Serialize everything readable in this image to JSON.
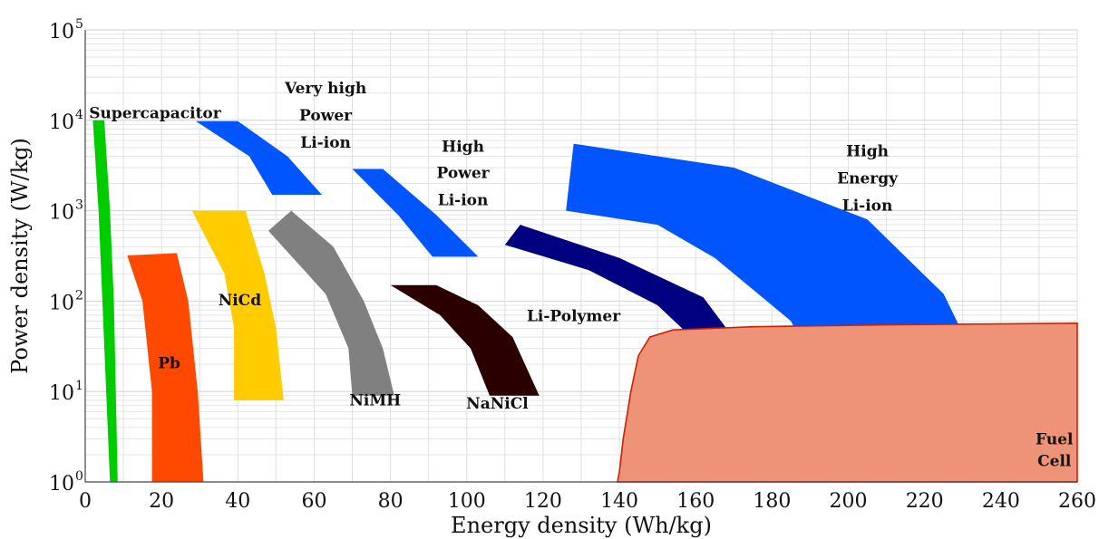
{
  "chart_data": {
    "type": "area",
    "title": "",
    "xlabel": "Energy density (Wh/kg)",
    "ylabel": "Power density (W/kg)",
    "x_scale": "linear",
    "y_scale": "log",
    "xlim": [
      0,
      260
    ],
    "ylim": [
      1,
      100000
    ],
    "x_ticks": [
      "0",
      "20",
      "40",
      "60",
      "80",
      "100",
      "120",
      "140",
      "160",
      "180",
      "200",
      "220",
      "240",
      "260"
    ],
    "y_ticks": [
      {
        "base": "10",
        "exp": "0"
      },
      {
        "base": "10",
        "exp": "1"
      },
      {
        "base": "10",
        "exp": "2"
      },
      {
        "base": "10",
        "exp": "3"
      },
      {
        "base": "10",
        "exp": "4"
      },
      {
        "base": "10",
        "exp": "5"
      }
    ],
    "grid": true,
    "series": [
      {
        "name": "Supercapacitor",
        "color": "#00cc00",
        "points": [
          [
            2,
            10000
          ],
          [
            5,
            10000
          ],
          [
            6.5,
            1000
          ],
          [
            7.5,
            100
          ],
          [
            8,
            10
          ],
          [
            8.5,
            1
          ],
          [
            6.5,
            1
          ],
          [
            5.5,
            10
          ],
          [
            4.5,
            100
          ],
          [
            3.5,
            1000
          ]
        ],
        "labels": [
          {
            "text": "Supercapacitor",
            "x": 1,
            "y": 10500
          }
        ]
      },
      {
        "name": "Pb",
        "color": "#ff4800",
        "points": [
          [
            11,
            320
          ],
          [
            24,
            340
          ],
          [
            27,
            100
          ],
          [
            29.5,
            10
          ],
          [
            31,
            1
          ],
          [
            17.5,
            1
          ],
          [
            17.5,
            10
          ],
          [
            15,
            100
          ]
        ],
        "labels": [
          {
            "text": "Pb",
            "x": 22,
            "y": 18
          }
        ]
      },
      {
        "name": "NiCd",
        "color": "#ffcc00",
        "points": [
          [
            28,
            1000
          ],
          [
            42,
            1000
          ],
          [
            47,
            200
          ],
          [
            50,
            50
          ],
          [
            52,
            8
          ],
          [
            39,
            8
          ],
          [
            39,
            50
          ],
          [
            36.5,
            200
          ]
        ],
        "labels": [
          {
            "text": "NiCd",
            "x": 40.5,
            "y": 90
          }
        ]
      },
      {
        "name": "NiMH",
        "color": "#808080",
        "points": [
          [
            48,
            600
          ],
          [
            54,
            1000
          ],
          [
            65,
            400
          ],
          [
            73,
            100
          ],
          [
            78,
            30
          ],
          [
            81,
            9
          ],
          [
            70,
            9
          ],
          [
            69,
            30
          ],
          [
            63,
            120
          ]
        ],
        "labels": [
          {
            "text": "NiMH",
            "x": 76,
            "y": 7
          }
        ]
      },
      {
        "name": "NaNiCl",
        "color": "#2a0000",
        "points": [
          [
            80,
            150
          ],
          [
            92,
            150
          ],
          [
            103,
            90
          ],
          [
            112,
            40
          ],
          [
            119,
            9
          ],
          [
            106,
            9
          ],
          [
            101,
            30
          ],
          [
            93,
            70
          ]
        ],
        "labels": [
          {
            "text": "NaNiCl",
            "x": 108,
            "y": 6.5
          }
        ]
      },
      {
        "name": "Very high Power Li-ion",
        "color": "#0055ff",
        "points": [
          [
            29,
            9800
          ],
          [
            40,
            9800
          ],
          [
            53,
            4000
          ],
          [
            62,
            1500
          ],
          [
            49,
            1500
          ],
          [
            43,
            4000
          ]
        ],
        "labels": [
          {
            "text": "Very high",
            "x": 63,
            "y": 20000
          },
          {
            "text": "Power",
            "x": 63,
            "y": 10000
          },
          {
            "text": "Li-ion",
            "x": 63,
            "y": 5000
          }
        ]
      },
      {
        "name": "High Power Li-ion",
        "color": "#0055ff",
        "points": [
          [
            70,
            2900
          ],
          [
            78,
            2900
          ],
          [
            92,
            900
          ],
          [
            103,
            310
          ],
          [
            91,
            310
          ],
          [
            82,
            900
          ]
        ],
        "labels": [
          {
            "text": "High",
            "x": 99,
            "y": 4500
          },
          {
            "text": "Power",
            "x": 99,
            "y": 2300
          },
          {
            "text": "Li-ion",
            "x": 99,
            "y": 1150
          }
        ]
      },
      {
        "name": "Li-Polymer",
        "color": "#000080",
        "points": [
          [
            110,
            420
          ],
          [
            114,
            700
          ],
          [
            140,
            300
          ],
          [
            162,
            110
          ],
          [
            172,
            30
          ],
          [
            180,
            3.5
          ],
          [
            170,
            3
          ],
          [
            164,
            25
          ],
          [
            150,
            90
          ],
          [
            132,
            220
          ]
        ],
        "labels": [
          {
            "text": "Li-Polymer",
            "x": 128,
            "y": 60
          }
        ]
      },
      {
        "name": "High Energy Li-ion",
        "color": "#0055ff",
        "points": [
          [
            126,
            1000
          ],
          [
            128,
            5500
          ],
          [
            170,
            3000
          ],
          [
            205,
            800
          ],
          [
            225,
            120
          ],
          [
            240,
            6
          ],
          [
            198,
            4
          ],
          [
            185,
            60
          ],
          [
            165,
            300
          ],
          [
            150,
            700
          ]
        ],
        "labels": [
          {
            "text": "High",
            "x": 205,
            "y": 4000
          },
          {
            "text": "Energy",
            "x": 205,
            "y": 2000
          },
          {
            "text": "Li-ion",
            "x": 205,
            "y": 1000
          }
        ]
      },
      {
        "name": "Fuel Cell",
        "color": "#ef9378",
        "stroke": "#cc2200",
        "points": [
          [
            139.5,
            1
          ],
          [
            140,
            1.3
          ],
          [
            141,
            3
          ],
          [
            143,
            10
          ],
          [
            145,
            25
          ],
          [
            148,
            40
          ],
          [
            154,
            48
          ],
          [
            175,
            52
          ],
          [
            215,
            55
          ],
          [
            260,
            57
          ],
          [
            260,
            1
          ]
        ],
        "labels": [
          {
            "text": "Fuel",
            "x": 254,
            "y": 2.6
          },
          {
            "text": "Cell",
            "x": 254,
            "y": 1.5
          }
        ]
      }
    ]
  }
}
